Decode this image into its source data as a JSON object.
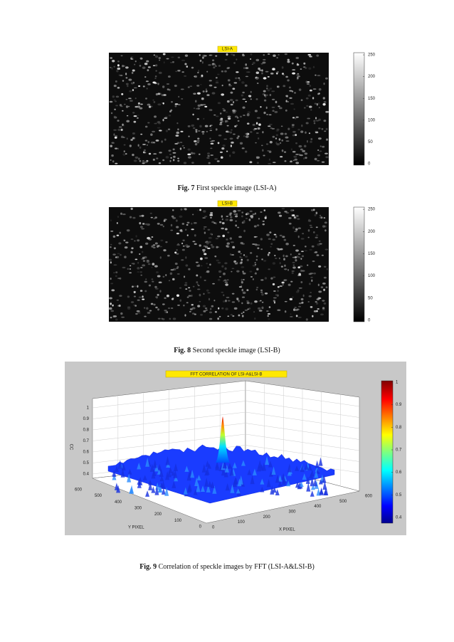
{
  "figures": [
    {
      "image_title": "LSI-A",
      "colorbar_ticks": [
        0,
        50,
        100,
        150,
        200,
        250
      ],
      "caption": {
        "label": "Fig. 7",
        "text": "First speckle image (LSI-A)"
      }
    },
    {
      "image_title": "LSI-B",
      "colorbar_ticks": [
        0,
        50,
        100,
        150,
        200,
        250
      ],
      "caption": {
        "label": "Fig. 8",
        "text": "Second speckle image (LSI-B)"
      }
    },
    {
      "plot_title": "FFT CORRELATION OF LSI-A&LSI-B",
      "z_label": "CC",
      "z_ticks": [
        0.4,
        0.5,
        0.6,
        0.7,
        0.8,
        0.9,
        1
      ],
      "y_label": "Y PIXEL",
      "y_ticks": [
        0,
        100,
        200,
        300,
        400,
        500,
        600
      ],
      "x_label": "X PIXEL",
      "x_ticks": [
        0,
        100,
        200,
        300,
        400,
        500,
        600
      ],
      "colorbar_ticks": [
        0.4,
        0.5,
        0.6,
        0.7,
        0.8,
        0.9,
        1
      ],
      "caption": {
        "label": "Fig. 9",
        "text": "Correlation of speckle images by FFT (LSI-A&LSI-B)"
      }
    }
  ]
}
